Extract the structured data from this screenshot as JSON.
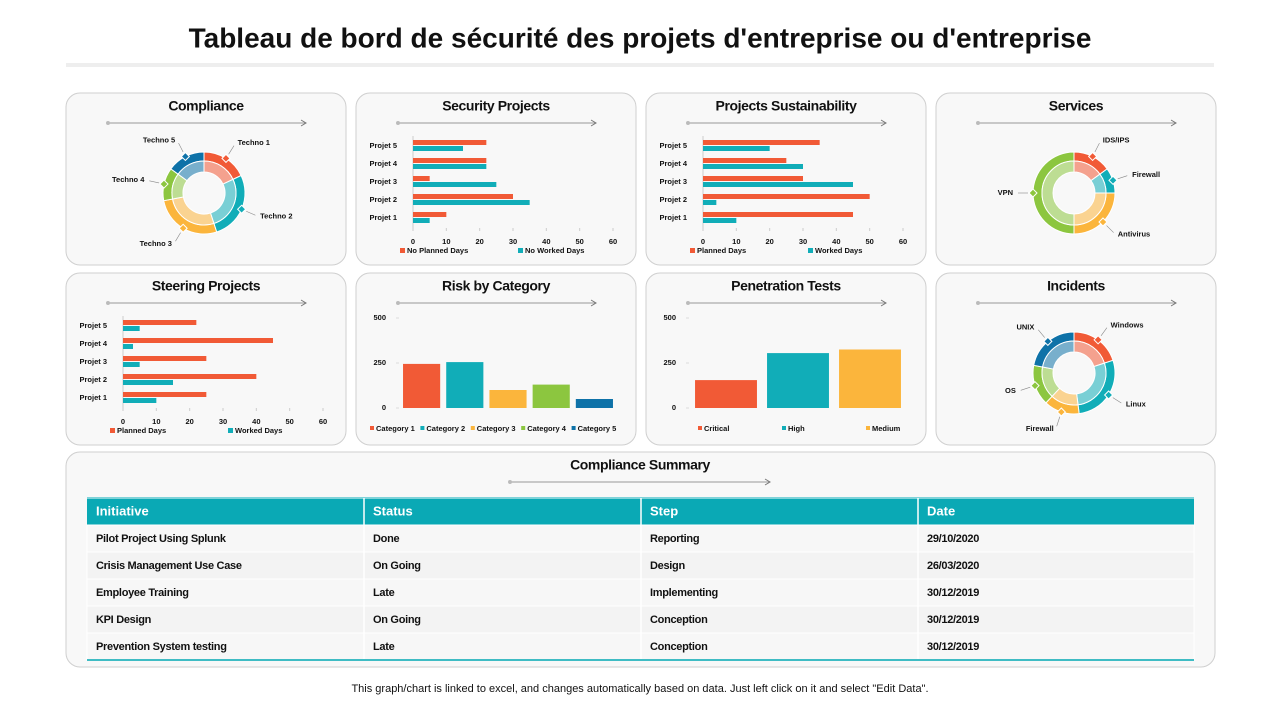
{
  "title": "Tableau de bord de sécurité des projets d'entreprise ou d'entreprise",
  "chart_data": [
    {
      "type": "donut",
      "title": "Compliance",
      "labels": [
        "Techno 1",
        "Techno 2",
        "Techno 3",
        "Techno 4",
        "Techno 5"
      ],
      "values": [
        18,
        27,
        27,
        13,
        15
      ],
      "colors": [
        "#f15a36",
        "#11adb8",
        "#fbb53c",
        "#8cc63f",
        "#0e72a8"
      ]
    },
    {
      "type": "hbar",
      "title": "Security Projects",
      "categories": [
        "Projet 1",
        "Projet 2",
        "Projet 3",
        "Projet 4",
        "Projet 5"
      ],
      "series": [
        {
          "name": "No Planned Days",
          "color": "#f15a36",
          "values": [
            10,
            30,
            5,
            22,
            22
          ]
        },
        {
          "name": "No Worked Days",
          "color": "#11adb8",
          "values": [
            5,
            35,
            25,
            22,
            15
          ]
        }
      ],
      "xlim": [
        0,
        60
      ],
      "xticks": [
        0,
        10,
        20,
        30,
        40,
        50,
        60
      ]
    },
    {
      "type": "hbar",
      "title": "Projects Sustainability",
      "categories": [
        "Projet 1",
        "Projet 2",
        "Projet 3",
        "Projet 4",
        "Projet 5"
      ],
      "series": [
        {
          "name": "Planned Days",
          "color": "#f15a36",
          "values": [
            45,
            50,
            30,
            25,
            35
          ]
        },
        {
          "name": "Worked Days",
          "color": "#11adb8",
          "values": [
            10,
            4,
            45,
            30,
            20
          ]
        }
      ],
      "xlim": [
        0,
        60
      ],
      "xticks": [
        0,
        10,
        20,
        30,
        40,
        50,
        60
      ]
    },
    {
      "type": "donut",
      "title": "Services",
      "labels": [
        "IDS/IPS",
        "Firewall",
        "Antivirus",
        "VPN"
      ],
      "values": [
        15,
        10,
        25,
        50
      ],
      "colors": [
        "#f15a36",
        "#11adb8",
        "#fbb53c",
        "#8cc63f"
      ]
    },
    {
      "type": "hbar",
      "title": "Steering Projects",
      "categories": [
        "Projet 1",
        "Projet 2",
        "Projet 3",
        "Projet 4",
        "Projet 5"
      ],
      "series": [
        {
          "name": "Planned Days",
          "color": "#f15a36",
          "values": [
            25,
            40,
            25,
            45,
            22
          ]
        },
        {
          "name": "Worked Days",
          "color": "#11adb8",
          "values": [
            10,
            15,
            5,
            3,
            5
          ]
        }
      ],
      "xlim": [
        0,
        60
      ],
      "xticks": [
        0,
        10,
        20,
        30,
        40,
        50,
        60
      ]
    },
    {
      "type": "bar",
      "title": "Risk by Category",
      "categories": [
        "Category 1",
        "Category 2",
        "Category 3",
        "Category 4",
        "Category 5"
      ],
      "values": [
        245,
        255,
        100,
        130,
        50
      ],
      "colors": [
        "#f15a36",
        "#11adb8",
        "#fbb53c",
        "#8cc63f",
        "#0e72a8"
      ],
      "ylim": [
        0,
        500
      ],
      "yticks": [
        0,
        250,
        500
      ]
    },
    {
      "type": "bar",
      "title": "Penetration Tests",
      "categories": [
        "Critical",
        "High",
        "Medium"
      ],
      "values": [
        155,
        305,
        325
      ],
      "colors": [
        "#f15a36",
        "#11adb8",
        "#fbb53c"
      ],
      "ylim": [
        0,
        500
      ],
      "yticks": [
        0,
        250,
        500
      ]
    },
    {
      "type": "donut",
      "title": "Incidents",
      "labels": [
        "Windows",
        "Linux",
        "Firewall",
        "OS",
        "UNIX"
      ],
      "values": [
        20,
        28,
        14,
        16,
        22
      ],
      "colors": [
        "#f15a36",
        "#11adb8",
        "#fbb53c",
        "#8cc63f",
        "#0e72a8"
      ]
    }
  ],
  "table": {
    "title": "Compliance Summary",
    "columns": [
      "Initiative",
      "Status",
      "Step",
      "Date"
    ],
    "rows": [
      [
        "Pilot Project Using Splunk",
        "Done",
        "Reporting",
        "29/10/2020"
      ],
      [
        "Crisis Management Use Case",
        "On Going",
        "Design",
        "26/03/2020"
      ],
      [
        "Employee Training",
        "Late",
        "Implementing",
        "30/12/2019"
      ],
      [
        "KPI Design",
        "On Going",
        "Conception",
        "30/12/2019"
      ],
      [
        "Prevention System testing",
        "Late",
        "Conception",
        "30/12/2019"
      ]
    ]
  },
  "footer": "This graph/chart is linked to excel, and changes automatically based on data. Just left click on it and select \"Edit Data\"."
}
